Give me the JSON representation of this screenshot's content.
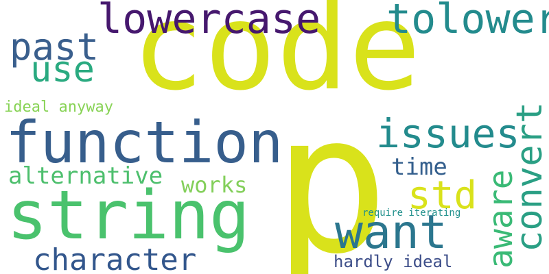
{
  "word_cloud": {
    "background": "#ffffff",
    "words": [
      {
        "id": "code",
        "text": "code",
        "color": "#d9e21b"
      },
      {
        "id": "p",
        "text": "p",
        "color": "#d9e21b"
      },
      {
        "id": "function",
        "text": "function",
        "color": "#375e8c"
      },
      {
        "id": "string",
        "text": "string",
        "color": "#4ac26d"
      },
      {
        "id": "lowercase",
        "text": "lowercase",
        "color": "#46186e"
      },
      {
        "id": "tolower",
        "text": "tolower",
        "color": "#238b8d"
      },
      {
        "id": "past",
        "text": "past",
        "color": "#3a5f8d"
      },
      {
        "id": "use",
        "text": "use",
        "color": "#2aaa80"
      },
      {
        "id": "issues",
        "text": "issues",
        "color": "#238b8d"
      },
      {
        "id": "convert",
        "text": "convert",
        "color": "#2a9f84"
      },
      {
        "id": "aware",
        "text": "aware",
        "color": "#3aba76"
      },
      {
        "id": "std",
        "text": "std",
        "color": "#d9e21b"
      },
      {
        "id": "time",
        "text": "time",
        "color": "#345f8d"
      },
      {
        "id": "want",
        "text": "want",
        "color": "#2b768e"
      },
      {
        "id": "alternative",
        "text": "alternative",
        "color": "#4dbf6d"
      },
      {
        "id": "works",
        "text": "works",
        "color": "#83cf5a"
      },
      {
        "id": "character",
        "text": "character",
        "color": "#32568c"
      },
      {
        "id": "ideal",
        "text": "ideal anyway",
        "color": "#88d356"
      },
      {
        "id": "require",
        "text": "require iterating",
        "color": "#20908c"
      },
      {
        "id": "hardly",
        "text": "hardly ideal",
        "color": "#3d4e89"
      }
    ]
  }
}
